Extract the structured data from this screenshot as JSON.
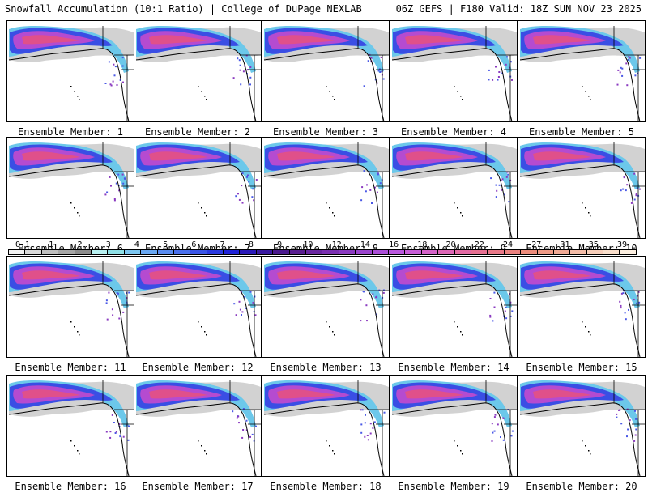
{
  "header": {
    "title": "Snowfall Accumulation (10:1 Ratio) | College of DuPage NEXLAB",
    "run_info": "06Z GEFS | F180 Valid: 18Z SUN NOV 23 2025"
  },
  "panels": [
    {
      "label": "Ensemble Member: 1"
    },
    {
      "label": "Ensemble Member: 2"
    },
    {
      "label": "Ensemble Member: 3"
    },
    {
      "label": "Ensemble Member: 4"
    },
    {
      "label": "Ensemble Member: 5"
    },
    {
      "label": "Ensemble Member: 6"
    },
    {
      "label": "Ensemble Member: 7"
    },
    {
      "label": "Ensemble Member: 8"
    },
    {
      "label": "Ensemble Member: 9"
    },
    {
      "label": "Ensemble Member: 10"
    },
    {
      "label": "Ensemble Member: 11"
    },
    {
      "label": "Ensemble Member: 12"
    },
    {
      "label": "Ensemble Member: 13"
    },
    {
      "label": "Ensemble Member: 14"
    },
    {
      "label": "Ensemble Member: 15"
    },
    {
      "label": "Ensemble Member: 16"
    },
    {
      "label": "Ensemble Member: 17"
    },
    {
      "label": "Ensemble Member: 18"
    },
    {
      "label": "Ensemble Member: 19"
    },
    {
      "label": "Ensemble Member: 20"
    }
  ],
  "colorbar": {
    "labels": [
      "0.1",
      "1",
      "2",
      "3",
      "4",
      "5",
      "6",
      "7",
      "8",
      "9",
      "10",
      "12",
      "14",
      "16",
      "18",
      "20",
      "22",
      "24",
      "27",
      "31",
      "35",
      "39"
    ],
    "colors": [
      "#f2f2f2",
      "#d9d9d9",
      "#bfbfbf",
      "#a6a6a6",
      "#8c8c8c",
      "#b8f0f0",
      "#8fe0e6",
      "#7cc6f0",
      "#6aa8f2",
      "#5a8cf0",
      "#4a70ec",
      "#3a55e6",
      "#2a3ae0",
      "#1f22d6",
      "#2a1ab8",
      "#3a1aa0",
      "#4a1a8c",
      "#5a1f90",
      "#6a28a0",
      "#7a30b0",
      "#8a3ac0",
      "#9a44cc",
      "#aa4ed6",
      "#ba58de",
      "#c85ed8",
      "#d462c8",
      "#dc66b6",
      "#e26aa4",
      "#e67092",
      "#e87888",
      "#ea8280",
      "#ec8c7c",
      "#ee9a86",
      "#f0aa96",
      "#f3bca8",
      "#f6ceba",
      "#f9dfcc",
      "#fcefe0"
    ]
  }
}
